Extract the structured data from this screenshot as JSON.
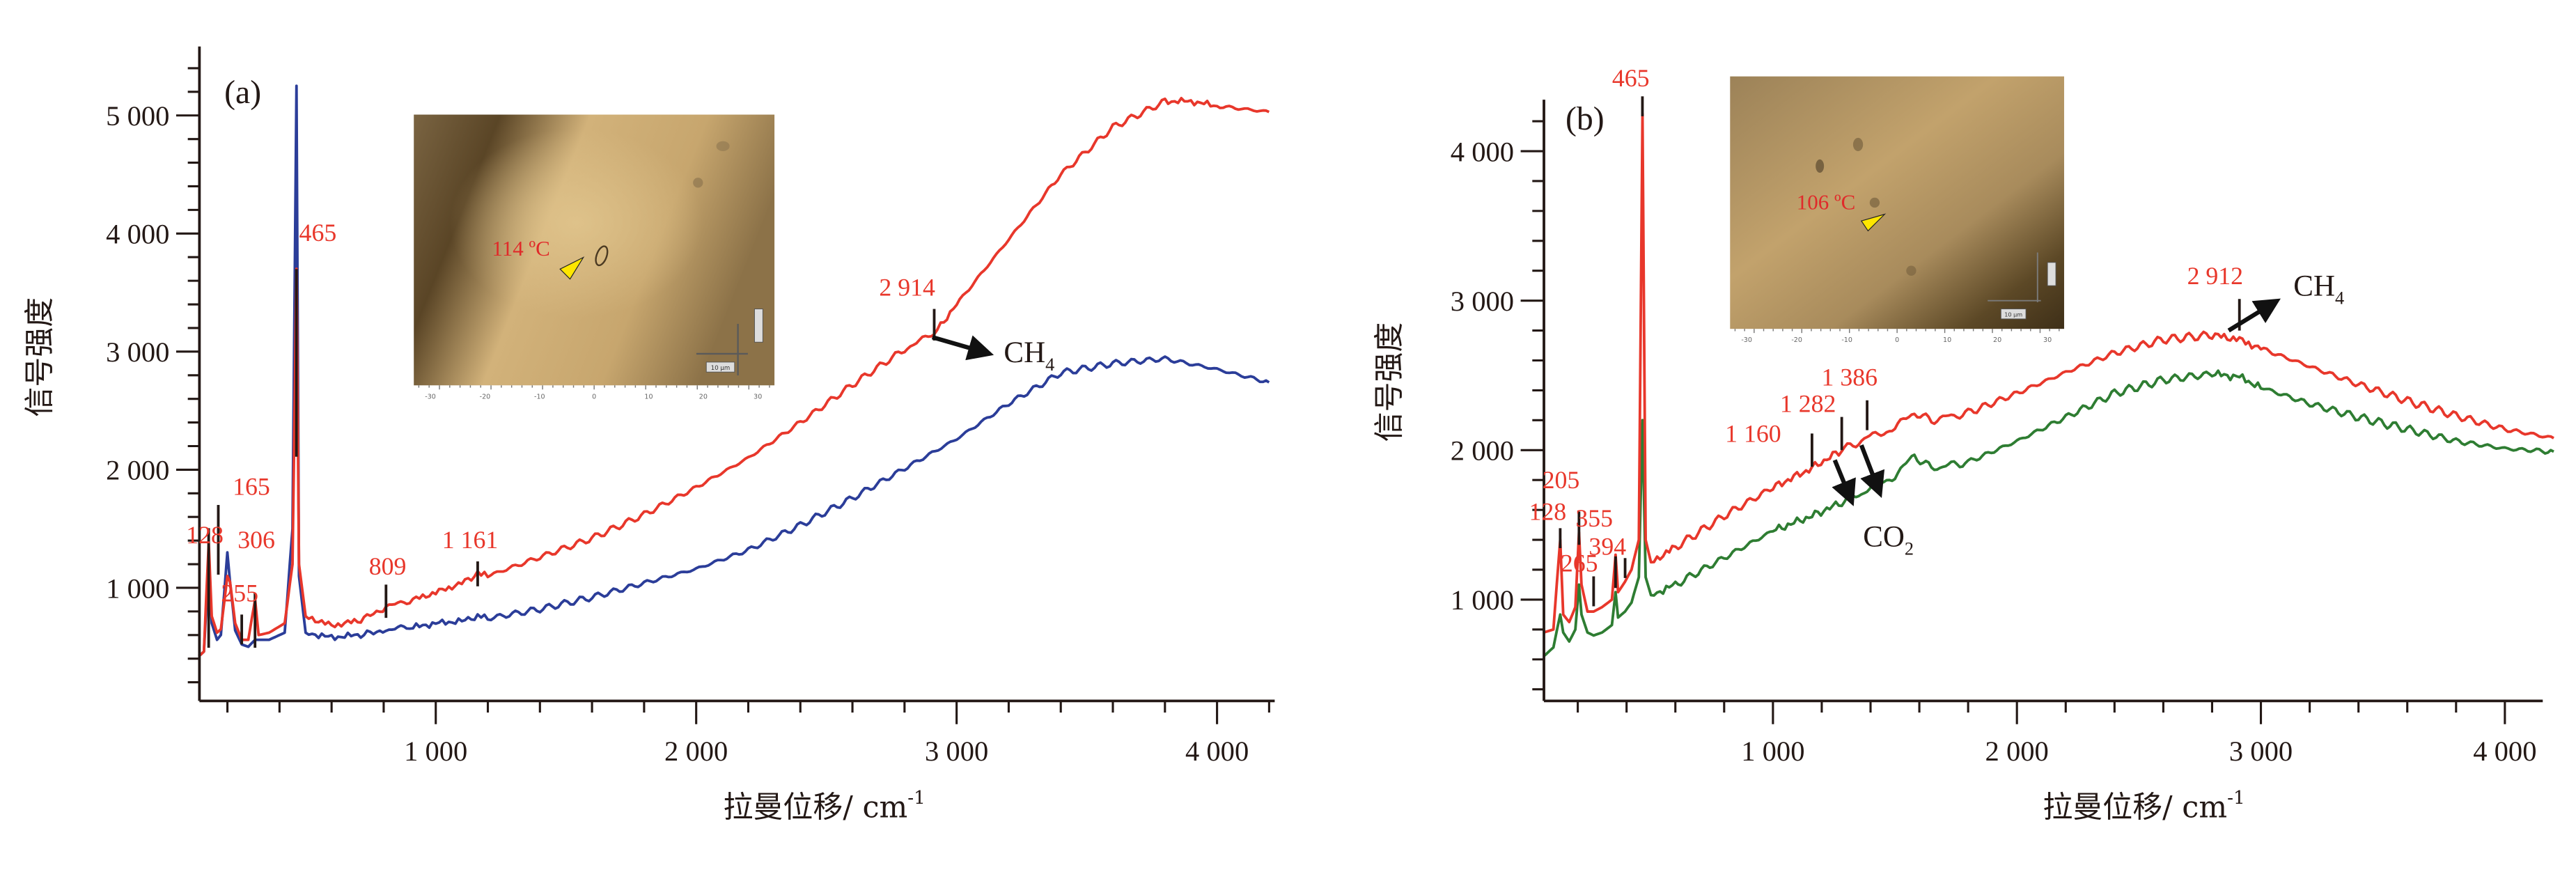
{
  "chart_data": [
    {
      "type": "line",
      "panel_label": "(a)",
      "title": "",
      "xlabel": "拉曼位移/ cm",
      "xlabel_superscript": "-1",
      "ylabel": "信号强度",
      "xlim": [
        90,
        4200
      ],
      "ylim": [
        40,
        5500
      ],
      "x_ticks": [
        1000,
        2000,
        3000,
        4000
      ],
      "x_tick_labels": [
        "1 000",
        "2 000",
        "3 000",
        "4 000"
      ],
      "x_minor_step": 200,
      "y_ticks": [
        1000,
        2000,
        3000,
        4000,
        5000
      ],
      "y_tick_labels": [
        "1 000",
        "2 000",
        "3 000",
        "4 000",
        "5 000"
      ],
      "y_minor_step": 200,
      "grid": false,
      "series": [
        {
          "name": "upper spectrum",
          "color": "#e8372b",
          "points": [
            [
              90,
              420
            ],
            [
              110,
              460
            ],
            [
              128,
              1380
            ],
            [
              140,
              760
            ],
            [
              160,
              620
            ],
            [
              175,
              650
            ],
            [
              200,
              1100
            ],
            [
              210,
              1050
            ],
            [
              230,
              700
            ],
            [
              255,
              560
            ],
            [
              280,
              560
            ],
            [
              306,
              900
            ],
            [
              320,
              600
            ],
            [
              360,
              620
            ],
            [
              420,
              700
            ],
            [
              450,
              1200
            ],
            [
              465,
              3700
            ],
            [
              475,
              1200
            ],
            [
              500,
              760
            ],
            [
              600,
              680
            ],
            [
              700,
              720
            ],
            [
              809,
              830
            ],
            [
              900,
              890
            ],
            [
              1000,
              960
            ],
            [
              1100,
              1040
            ],
            [
              1161,
              1120
            ],
            [
              1200,
              1100
            ],
            [
              1400,
              1260
            ],
            [
              1600,
              1420
            ],
            [
              1800,
              1620
            ],
            [
              2000,
              1850
            ],
            [
              2200,
              2100
            ],
            [
              2400,
              2400
            ],
            [
              2600,
              2720
            ],
            [
              2800,
              3020
            ],
            [
              2914,
              3150
            ],
            [
              3000,
              3400
            ],
            [
              3200,
              3950
            ],
            [
              3400,
              4500
            ],
            [
              3600,
              4900
            ],
            [
              3800,
              5120
            ],
            [
              3900,
              5120
            ],
            [
              4000,
              5080
            ],
            [
              4200,
              5030
            ]
          ]
        },
        {
          "name": "lower spectrum",
          "color": "#2b3d99",
          "points": [
            [
              90,
              420
            ],
            [
              110,
              460
            ],
            [
              128,
              1200
            ],
            [
              140,
              700
            ],
            [
              160,
              560
            ],
            [
              175,
              600
            ],
            [
              200,
              1300
            ],
            [
              210,
              1050
            ],
            [
              230,
              640
            ],
            [
              255,
              520
            ],
            [
              280,
              500
            ],
            [
              306,
              560
            ],
            [
              360,
              560
            ],
            [
              420,
              620
            ],
            [
              450,
              1500
            ],
            [
              465,
              5250
            ],
            [
              475,
              1100
            ],
            [
              500,
              620
            ],
            [
              600,
              580
            ],
            [
              700,
              600
            ],
            [
              809,
              640
            ],
            [
              900,
              660
            ],
            [
              1000,
              700
            ],
            [
              1100,
              720
            ],
            [
              1161,
              760
            ],
            [
              1200,
              740
            ],
            [
              1400,
              820
            ],
            [
              1600,
              920
            ],
            [
              1800,
              1040
            ],
            [
              2000,
              1160
            ],
            [
              2200,
              1320
            ],
            [
              2400,
              1530
            ],
            [
              2600,
              1760
            ],
            [
              2800,
              2010
            ],
            [
              3000,
              2260
            ],
            [
              3200,
              2560
            ],
            [
              3400,
              2820
            ],
            [
              3600,
              2900
            ],
            [
              3800,
              2940
            ],
            [
              4000,
              2850
            ],
            [
              4200,
              2740
            ]
          ]
        }
      ],
      "annotations": [
        {
          "text": "128",
          "x": 128
        },
        {
          "text": "165",
          "x": 165
        },
        {
          "text": "255",
          "x": 255
        },
        {
          "text": "306",
          "x": 306
        },
        {
          "text": "465",
          "x": 465
        },
        {
          "text": "809",
          "x": 809
        },
        {
          "text": "1 161",
          "x": 1161
        },
        {
          "text": "2 914",
          "x": 2914,
          "species": "CH",
          "species_subscript": "4"
        }
      ],
      "inset_photo": {
        "temperature_label": "114 ºC",
        "scale_bar_label": "10 μm",
        "axis_tick_labels": [
          "-30",
          "-20",
          "-10",
          "0",
          "10",
          "20",
          "30"
        ]
      }
    },
    {
      "type": "line",
      "panel_label": "(b)",
      "title": "",
      "xlabel": "拉曼位移/ cm",
      "xlabel_superscript": "-1",
      "ylabel": "信号强度",
      "xlim": [
        60,
        4200
      ],
      "ylim": [
        320,
        4450
      ],
      "x_ticks": [
        1000,
        2000,
        3000,
        4000
      ],
      "x_tick_labels": [
        "1 000",
        "2 000",
        "3 000",
        "4 000"
      ],
      "x_minor_step": 200,
      "y_ticks": [
        1000,
        2000,
        3000,
        4000
      ],
      "y_tick_labels": [
        "1 000",
        "2 000",
        "3 000",
        "4 000"
      ],
      "y_minor_step": 200,
      "grid": false,
      "series": [
        {
          "name": "upper spectrum",
          "color": "#e8372b",
          "points": [
            [
              60,
              780
            ],
            [
              100,
              800
            ],
            [
              128,
              1400
            ],
            [
              140,
              900
            ],
            [
              165,
              850
            ],
            [
              190,
              950
            ],
            [
              205,
              1450
            ],
            [
              215,
              1100
            ],
            [
              240,
              920
            ],
            [
              265,
              920
            ],
            [
              300,
              950
            ],
            [
              340,
              1000
            ],
            [
              355,
              1300
            ],
            [
              365,
              1050
            ],
            [
              394,
              1120
            ],
            [
              420,
              1200
            ],
            [
              450,
              1400
            ],
            [
              465,
              4250
            ],
            [
              478,
              1400
            ],
            [
              500,
              1250
            ],
            [
              600,
              1350
            ],
            [
              800,
              1560
            ],
            [
              1000,
              1750
            ],
            [
              1160,
              1880
            ],
            [
              1282,
              2000
            ],
            [
              1386,
              2080
            ],
            [
              1500,
              2150
            ],
            [
              1580,
              2250
            ],
            [
              1650,
              2200
            ],
            [
              1800,
              2250
            ],
            [
              2000,
              2380
            ],
            [
              2200,
              2520
            ],
            [
              2400,
              2650
            ],
            [
              2600,
              2740
            ],
            [
              2800,
              2770
            ],
            [
              2912,
              2740
            ],
            [
              3000,
              2680
            ],
            [
              3200,
              2560
            ],
            [
              3400,
              2440
            ],
            [
              3600,
              2330
            ],
            [
              3800,
              2230
            ],
            [
              4000,
              2140
            ],
            [
              4200,
              2080
            ]
          ]
        },
        {
          "name": "lower spectrum",
          "color": "#2e7d32",
          "points": [
            [
              60,
              620
            ],
            [
              100,
              680
            ],
            [
              128,
              900
            ],
            [
              140,
              780
            ],
            [
              165,
              720
            ],
            [
              190,
              800
            ],
            [
              205,
              1100
            ],
            [
              215,
              900
            ],
            [
              240,
              780
            ],
            [
              265,
              760
            ],
            [
              300,
              780
            ],
            [
              340,
              830
            ],
            [
              355,
              1050
            ],
            [
              365,
              880
            ],
            [
              394,
              920
            ],
            [
              420,
              980
            ],
            [
              450,
              1150
            ],
            [
              465,
              2200
            ],
            [
              478,
              1150
            ],
            [
              500,
              1030
            ],
            [
              600,
              1100
            ],
            [
              800,
              1280
            ],
            [
              1000,
              1460
            ],
            [
              1160,
              1560
            ],
            [
              1282,
              1650
            ],
            [
              1386,
              1730
            ],
            [
              1500,
              1830
            ],
            [
              1580,
              1960
            ],
            [
              1650,
              1880
            ],
            [
              1800,
              1920
            ],
            [
              2000,
              2060
            ],
            [
              2200,
              2220
            ],
            [
              2400,
              2380
            ],
            [
              2600,
              2470
            ],
            [
              2800,
              2510
            ],
            [
              2912,
              2490
            ],
            [
              3000,
              2420
            ],
            [
              3200,
              2310
            ],
            [
              3400,
              2220
            ],
            [
              3600,
              2140
            ],
            [
              3800,
              2060
            ],
            [
              4000,
              2010
            ],
            [
              4200,
              1990
            ]
          ]
        }
      ],
      "annotations": [
        {
          "text": "128",
          "x": 128
        },
        {
          "text": "205",
          "x": 205
        },
        {
          "text": "265",
          "x": 265
        },
        {
          "text": "355",
          "x": 355
        },
        {
          "text": "394",
          "x": 394
        },
        {
          "text": "465",
          "x": 465
        },
        {
          "text": "1 160",
          "x": 1160
        },
        {
          "text": "1 282",
          "x": 1282,
          "species": "CO",
          "species_subscript": "2"
        },
        {
          "text": "1 386",
          "x": 1386,
          "species": "CO",
          "species_subscript": "2"
        },
        {
          "text": "2 912",
          "x": 2912,
          "species": "CH",
          "species_subscript": "4"
        }
      ],
      "inset_photo": {
        "temperature_label": "106 ºC",
        "scale_bar_label": "10 μm",
        "axis_tick_labels": [
          "-30",
          "-20",
          "-10",
          "0",
          "10",
          "20",
          "30"
        ]
      }
    }
  ],
  "text": {
    "a_ylabel": "信号强度",
    "b_ylabel": "信号强度",
    "xlabel_main": "拉曼位移/ cm",
    "xlabel_sup": "-1",
    "ch4_main": "CH",
    "ch4_sub": "4",
    "co2_main": "CO",
    "co2_sub": "2",
    "a_panel": "(a)",
    "b_panel": "(b)",
    "a_temp": "114 ºC",
    "b_temp": "106 ºC",
    "scale_bar": "10 μm"
  }
}
